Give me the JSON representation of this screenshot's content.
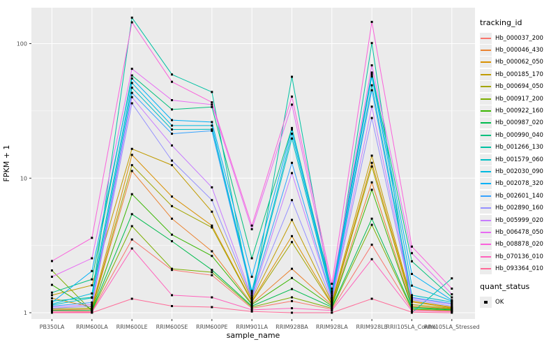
{
  "style": {
    "panel_bg": "#EBEBEB",
    "grid_color": "#FFFFFF",
    "tick_color": "#333333",
    "tick_label_color": "#4D4D4D",
    "point_color": "#000000",
    "legend_key_bg": "#ECECEC"
  },
  "chart_data": {
    "type": "line",
    "xlabel": "sample_name",
    "ylabel": "FPKM + 1",
    "y_scale": "log10",
    "ylim": [
      1,
      185
    ],
    "y_ticks": [
      "1",
      "10",
      "100"
    ],
    "y_tick_values": [
      1,
      10,
      100
    ],
    "y_minor_values": [
      3.1623,
      31.623
    ],
    "grid": "on",
    "legend_position": "right",
    "categories": [
      "PB350LA",
      "RRIM600LA",
      "RRIM600LE",
      "RRIM600SE",
      "RRIM600PE",
      "RRIM901LA",
      "RRIM928BA",
      "RRIM928LA",
      "RRIM928LE",
      "RRII105LA_Control",
      "RRII105LA_Stressed"
    ],
    "legend_title": "tracking_id",
    "series": [
      {
        "name": "Hb_000037_200",
        "color": "#F8766D",
        "values": [
          1.03,
          1.02,
          3.5,
          2.08,
          1.9,
          1.08,
          1.22,
          1.06,
          3.2,
          1.05,
          1.03
        ]
      },
      {
        "name": "Hb_000046_430",
        "color": "#EA8331",
        "values": [
          1.05,
          1.06,
          11.3,
          5.0,
          2.86,
          1.17,
          2.12,
          1.14,
          9.3,
          1.12,
          1.07
        ]
      },
      {
        "name": "Hb_000062_050",
        "color": "#D89000",
        "values": [
          1.28,
          1.1,
          14.9,
          7.3,
          4.44,
          1.22,
          3.71,
          1.17,
          13.0,
          1.2,
          1.09
        ]
      },
      {
        "name": "Hb_000185_170",
        "color": "#C09B00",
        "values": [
          1.35,
          1.6,
          16.5,
          12.5,
          5.63,
          1.25,
          4.9,
          1.2,
          14.7,
          1.22,
          1.1
        ]
      },
      {
        "name": "Hb_000694_050",
        "color": "#A3A500",
        "values": [
          1.07,
          1.08,
          12.5,
          6.2,
          4.3,
          1.2,
          3.35,
          1.15,
          12.2,
          1.15,
          1.08
        ]
      },
      {
        "name": "Hb_000917_200",
        "color": "#7CAE00",
        "values": [
          2.06,
          1.03,
          4.4,
          2.12,
          2.0,
          1.1,
          1.3,
          1.08,
          4.5,
          1.06,
          1.04
        ]
      },
      {
        "name": "Hb_000922_160",
        "color": "#39B600",
        "values": [
          1.61,
          1.05,
          7.6,
          3.8,
          2.64,
          1.15,
          1.81,
          1.12,
          8.2,
          1.1,
          1.06
        ]
      },
      {
        "name": "Hb_000987_020",
        "color": "#00BB4E",
        "values": [
          1.04,
          1.04,
          5.4,
          3.4,
          2.08,
          1.12,
          1.5,
          1.1,
          5.0,
          1.08,
          1.05
        ]
      },
      {
        "name": "Hb_000990_040",
        "color": "#00BF7D",
        "values": [
          1.41,
          1.77,
          58,
          32.4,
          33.8,
          2.54,
          23.6,
          1.45,
          61,
          2.41,
          1.3
        ]
      },
      {
        "name": "Hb_001266_130",
        "color": "#00C1A3",
        "values": [
          1.22,
          1.3,
          156,
          59,
          43.7,
          1.22,
          56.7,
          1.3,
          101,
          1.0,
          1.8
        ]
      },
      {
        "name": "Hb_001579_060",
        "color": "#00BFC4",
        "values": [
          1.14,
          1.29,
          47,
          23,
          23.1,
          1.4,
          19.7,
          1.3,
          49,
          1.35,
          1.2
        ]
      },
      {
        "name": "Hb_002030_090",
        "color": "#00BAE0",
        "values": [
          1.16,
          1.39,
          51,
          24.6,
          24.6,
          1.45,
          21.4,
          1.35,
          57,
          1.59,
          1.22
        ]
      },
      {
        "name": "Hb_002078_320",
        "color": "#00B0F6",
        "values": [
          1.19,
          2.04,
          55,
          27,
          26.1,
          1.85,
          23.0,
          1.4,
          59,
          1.94,
          1.24
        ]
      },
      {
        "name": "Hb_002601_140",
        "color": "#35A2FF",
        "values": [
          1.12,
          1.19,
          43,
          21.4,
          22.5,
          1.35,
          13.0,
          1.27,
          45,
          1.3,
          1.17
        ]
      },
      {
        "name": "Hb_002890_160",
        "color": "#9590FF",
        "values": [
          1.08,
          1.12,
          36,
          13.5,
          6.87,
          1.28,
          6.87,
          1.22,
          28,
          1.25,
          1.12
        ]
      },
      {
        "name": "Hb_005999_020",
        "color": "#C77CFF",
        "values": [
          1.1,
          1.15,
          40,
          17.5,
          8.55,
          1.3,
          10.9,
          1.25,
          34,
          1.28,
          1.15
        ]
      },
      {
        "name": "Hb_006478_050",
        "color": "#E76BF3",
        "values": [
          1.85,
          2.54,
          65,
          38,
          35.2,
          4.18,
          35.2,
          1.51,
          69,
          2.77,
          1.37
        ]
      },
      {
        "name": "Hb_008878_020",
        "color": "#FA62DB",
        "values": [
          2.42,
          3.6,
          144,
          52,
          36.6,
          4.44,
          40.4,
          1.64,
          145,
          3.1,
          1.51
        ]
      },
      {
        "name": "Hb_070136_010",
        "color": "#FF62BC",
        "values": [
          1.01,
          1.01,
          3.0,
          1.35,
          1.3,
          1.05,
          1.08,
          1.04,
          2.5,
          1.03,
          1.02
        ]
      },
      {
        "name": "Hb_093364_010",
        "color": "#FF6A98",
        "values": [
          1.0,
          1.0,
          1.27,
          1.12,
          1.1,
          1.02,
          1.0,
          1.0,
          1.27,
          1.01,
          1.0
        ]
      }
    ],
    "legend2_title": "quant_status",
    "quant_status": [
      {
        "label": "OK",
        "marker": "black-square"
      }
    ]
  }
}
